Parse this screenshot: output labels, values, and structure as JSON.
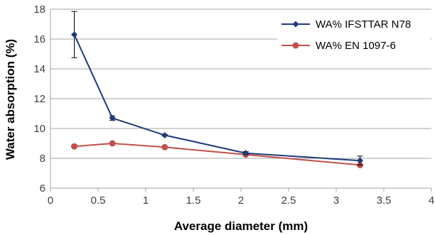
{
  "chart_data": {
    "type": "line",
    "xlabel": "Average diameter (mm)",
    "ylabel": "Water absorption (%)",
    "xlim": [
      0,
      4
    ],
    "ylim": [
      6,
      18
    ],
    "xticks": [
      "0",
      "0.5",
      "1",
      "1.5",
      "2",
      "2.5",
      "3",
      "3.5",
      "4"
    ],
    "yticks": [
      "6",
      "8",
      "10",
      "12",
      "14",
      "16",
      "18"
    ],
    "grid": "horizontal",
    "legend_position": "top-right",
    "series": [
      {
        "name": "WA% IFSTTAR N78",
        "color": "#1f3a7a",
        "marker": "diamond",
        "x": [
          0.25,
          0.65,
          1.2,
          2.05,
          3.25
        ],
        "y": [
          16.3,
          10.7,
          9.55,
          8.35,
          7.85
        ],
        "error": [
          1.55,
          0.15,
          0.05,
          0.1,
          0.3
        ]
      },
      {
        "name": "WA% EN 1097-6",
        "color": "#c0504d",
        "marker": "circle",
        "x": [
          0.25,
          0.65,
          1.2,
          2.05,
          3.25
        ],
        "y": [
          8.8,
          9.0,
          8.75,
          8.25,
          7.55
        ]
      }
    ]
  }
}
